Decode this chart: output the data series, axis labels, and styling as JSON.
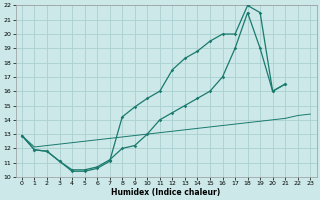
{
  "xlabel": "Humidex (Indice chaleur)",
  "background_color": "#cce8e8",
  "grid_color": "#aad0d0",
  "line_color": "#1a7a6e",
  "ylim": [
    10,
    22
  ],
  "xlim": [
    -0.5,
    23.5
  ],
  "yticks": [
    10,
    11,
    12,
    13,
    14,
    15,
    16,
    17,
    18,
    19,
    20,
    21,
    22
  ],
  "xticks": [
    0,
    1,
    2,
    3,
    4,
    5,
    6,
    7,
    8,
    9,
    10,
    11,
    12,
    13,
    14,
    15,
    16,
    17,
    18,
    19,
    20,
    21,
    22,
    23
  ],
  "line1_x": [
    0,
    1,
    2,
    3,
    4,
    5,
    6,
    7,
    8,
    9,
    10,
    11,
    12,
    13,
    14,
    15,
    16,
    17,
    18,
    19,
    20,
    21
  ],
  "line1_y": [
    12.9,
    11.9,
    11.8,
    11.1,
    10.4,
    10.4,
    10.6,
    11.1,
    14.2,
    14.9,
    15.5,
    16.0,
    17.5,
    18.3,
    18.8,
    19.5,
    20.0,
    20.0,
    22.0,
    21.5,
    16.0,
    16.5
  ],
  "line2_x": [
    0,
    1,
    2,
    3,
    4,
    5,
    6,
    7,
    8,
    9,
    10,
    11,
    12,
    13,
    14,
    15,
    16,
    17,
    18,
    19,
    20,
    21
  ],
  "line2_y": [
    12.9,
    11.9,
    11.8,
    11.1,
    10.5,
    10.5,
    10.7,
    11.2,
    12.0,
    12.2,
    13.0,
    14.0,
    14.5,
    15.0,
    15.5,
    16.0,
    17.0,
    19.0,
    21.5,
    19.0,
    16.0,
    16.5
  ],
  "line3_x": [
    0,
    1,
    2,
    3,
    4,
    5,
    6,
    7,
    8,
    9,
    10,
    11,
    12,
    13,
    14,
    15,
    16,
    17,
    18,
    19,
    20,
    21,
    22,
    23
  ],
  "line3_y": [
    12.9,
    12.1,
    12.2,
    12.3,
    12.4,
    12.5,
    12.6,
    12.7,
    12.8,
    12.9,
    13.0,
    13.1,
    13.2,
    13.3,
    13.4,
    13.5,
    13.6,
    13.7,
    13.8,
    13.9,
    14.0,
    14.1,
    14.3,
    14.4
  ]
}
